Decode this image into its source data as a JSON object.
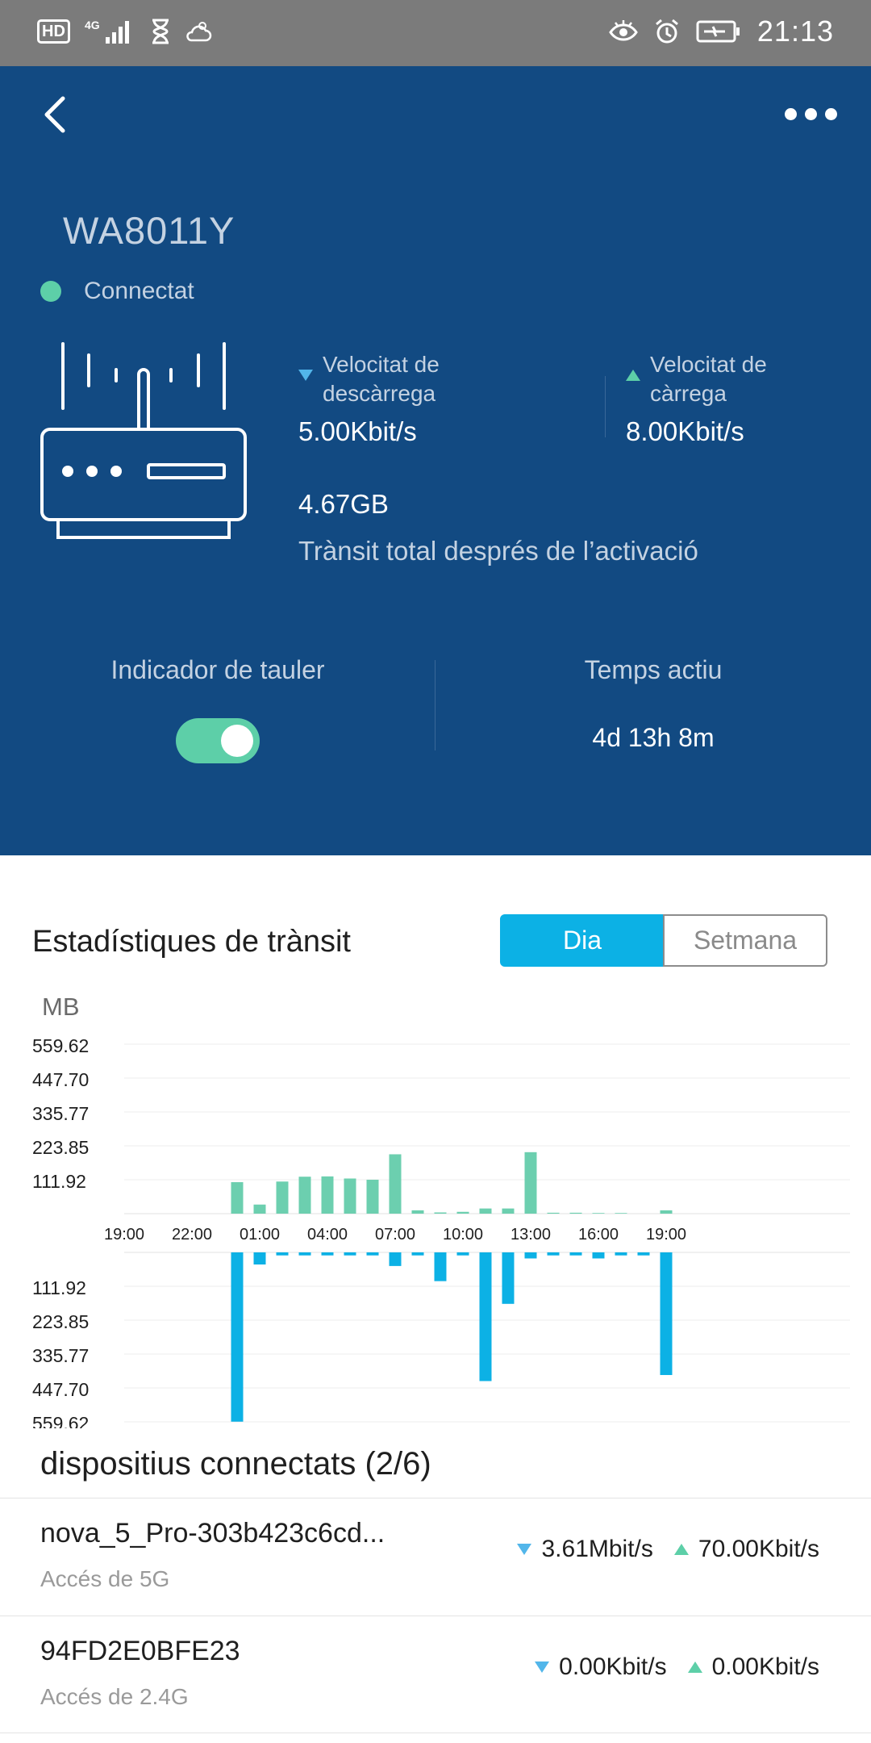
{
  "status_bar": {
    "network": "4G",
    "hd": "HD",
    "time": "21:13"
  },
  "header": {
    "device_name": "WA8011Y",
    "connection_status": "Connectat",
    "download": {
      "label_line1": "Velocitat de",
      "label_line2": "descàrrega",
      "value": "5.00Kbit/s"
    },
    "upload": {
      "label_line1": "Velocitat de",
      "label_line2": "càrrega",
      "value": "8.00Kbit/s"
    },
    "total_traffic_value": "4.67GB",
    "total_traffic_label": "Trànsit total després de l’activació",
    "panel_indicator_label": "Indicador de tauler",
    "panel_indicator_on": true,
    "uptime_label": "Temps actiu",
    "uptime_value": "4d 13h 8m"
  },
  "stats": {
    "title": "Estadístiques de trànsit",
    "tab_day": "Dia",
    "tab_week": "Setmana",
    "selected_tab": "Dia"
  },
  "chart_data": {
    "type": "bar",
    "ylabel": "MB",
    "y_ticks": [
      "559.62",
      "447.70",
      "335.77",
      "223.85",
      "111.92"
    ],
    "ylim": [
      0,
      559.62
    ],
    "x_tick_labels": [
      "19:00",
      "22:00",
      "01:00",
      "04:00",
      "07:00",
      "10:00",
      "13:00",
      "16:00",
      "19:00"
    ],
    "categories": [
      "20:00",
      "21:00",
      "22:00",
      "23:00",
      "00:00",
      "01:00",
      "02:00",
      "03:00",
      "04:00",
      "05:00",
      "06:00",
      "07:00",
      "08:00",
      "09:00",
      "10:00",
      "11:00",
      "12:00",
      "13:00",
      "14:00",
      "15:00",
      "16:00",
      "17:00",
      "18:00",
      "19:00"
    ],
    "series": [
      {
        "values": [
          0,
          0,
          0,
          0,
          104,
          30,
          106,
          122,
          123,
          116,
          112,
          196,
          11,
          4,
          6,
          17,
          17,
          203,
          3,
          3,
          2,
          2,
          0,
          11
        ]
      },
      {
        "values": [
          0,
          0,
          0,
          0,
          559,
          40,
          10,
          10,
          10,
          10,
          10,
          45,
          10,
          95,
          10,
          425,
          170,
          20,
          10,
          10,
          20,
          10,
          10,
          405
        ]
      }
    ],
    "colors": {
      "upload": "#6ccfaf",
      "download": "#0cb1e5"
    },
    "grid": true
  },
  "devices": {
    "title": "dispositius connectats (2/6)",
    "items": [
      {
        "name": "nova_5_Pro-303b423c6cd...",
        "access": "Accés de 5G",
        "down": "3.61Mbit/s",
        "up": "70.00Kbit/s"
      },
      {
        "name": "94FD2E0BFE23",
        "access": "Accés de 2.4G",
        "down": "0.00Kbit/s",
        "up": "0.00Kbit/s"
      }
    ]
  },
  "colors": {
    "header_bg": "#124a82",
    "accent_green": "#5dcfa8",
    "accent_blue": "#0cb1e5"
  }
}
